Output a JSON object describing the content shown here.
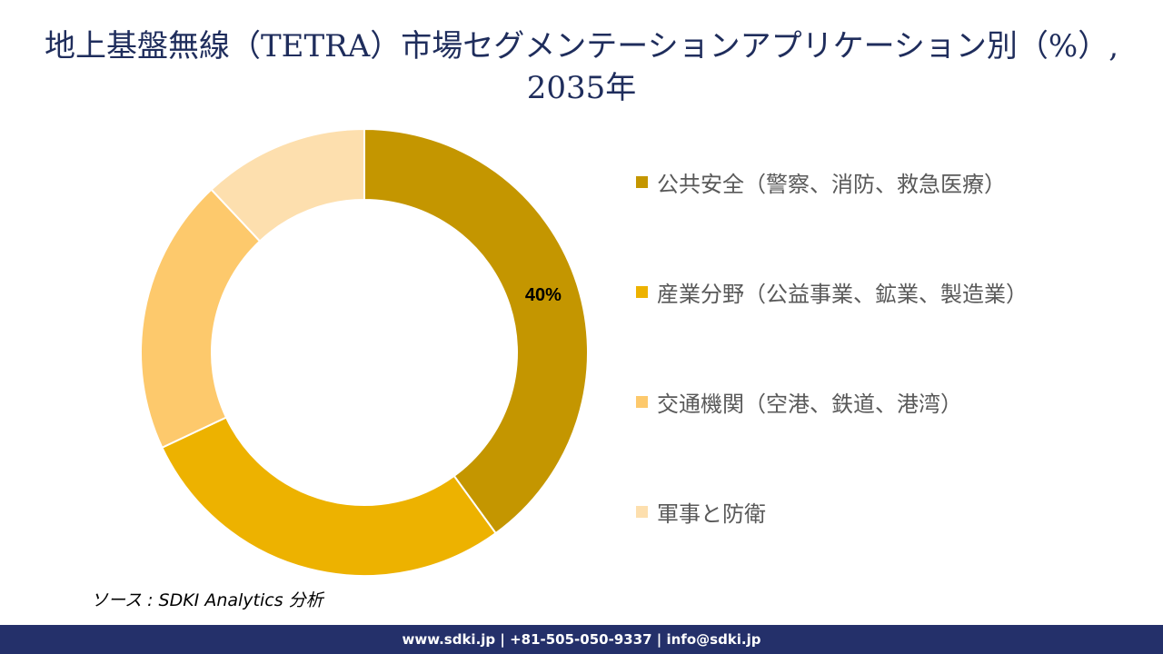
{
  "chart_data": {
    "type": "pie",
    "donut": true,
    "title": "地上基盤無線（TETRA）市場セグメンテーションアプリケーション別（%）, 2035年",
    "categories": [
      "公共安全（警察、消防、救急医療）",
      "産業分野（公益事業、鉱業、製造業）",
      "交通機関（空港、鉄道、港湾）",
      "軍事と防衛"
    ],
    "values": [
      40,
      28,
      20,
      12
    ],
    "data_labels": [
      "40%",
      "",
      "",
      ""
    ],
    "colors": [
      "#C49600",
      "#EDB200",
      "#FDC96C",
      "#FDDFAE"
    ],
    "legend_position": "right"
  },
  "source": "ソース : SDKI Analytics 分析",
  "footer": "www.sdki.jp | +81-505-050-9337 | info@sdki.jp"
}
